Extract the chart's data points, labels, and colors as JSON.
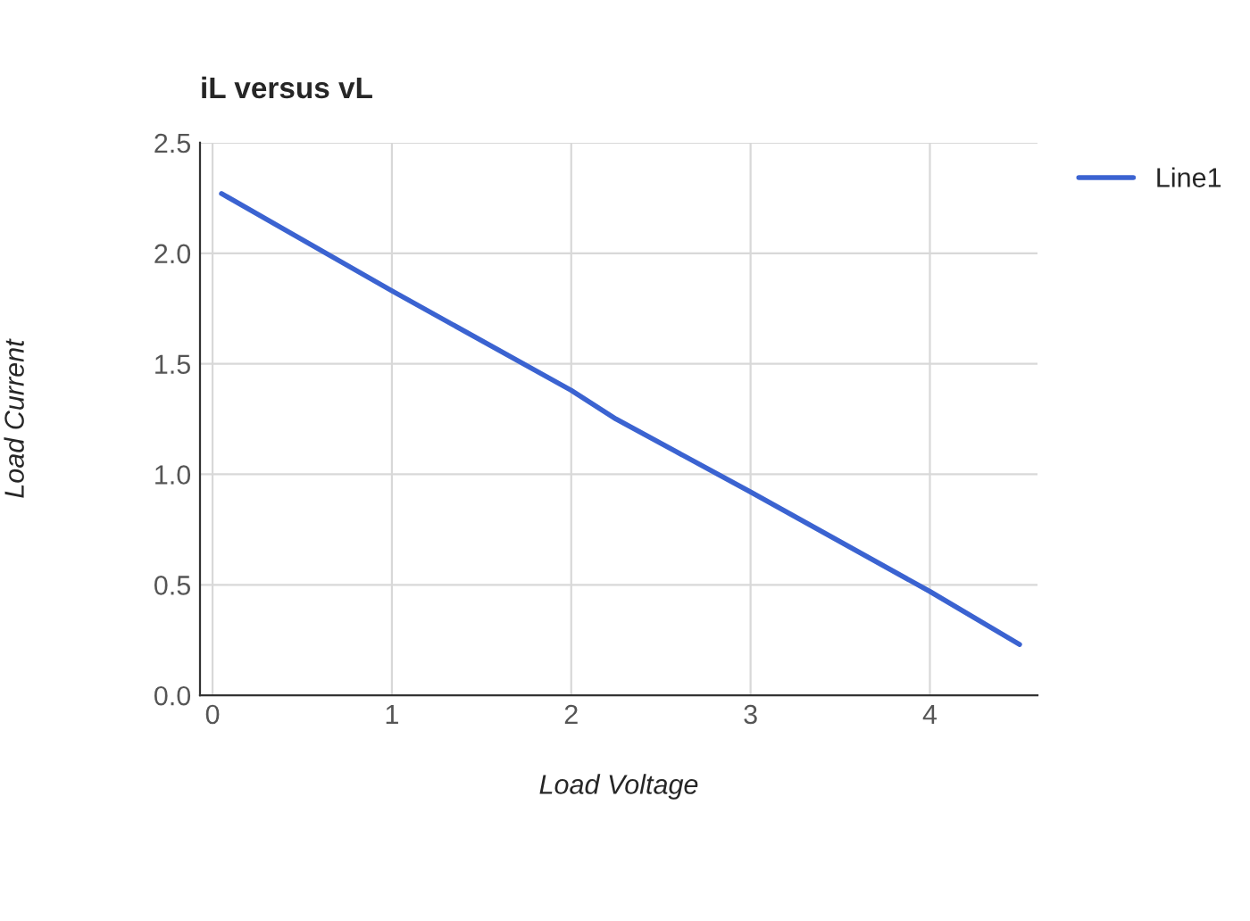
{
  "chart_data": {
    "type": "line",
    "title": "iL versus vL",
    "xlabel": "Load Voltage",
    "ylabel": "Load Current",
    "series": [
      {
        "name": "Line1",
        "color": "#3b63d1",
        "x": [
          0.05,
          1,
          2,
          2.25,
          3,
          4,
          4.5
        ],
        "values": [
          2.27,
          1.83,
          1.38,
          1.25,
          0.92,
          0.47,
          0.23
        ]
      }
    ],
    "xlim": [
      -0.07,
      4.6
    ],
    "xticks": [
      0,
      1,
      2,
      3,
      4
    ],
    "ylim": [
      0,
      2.5
    ],
    "yticks": [
      {
        "value": 0,
        "label": "0.0"
      },
      0.5,
      {
        "value": 1,
        "label": "1.0"
      },
      1.5,
      {
        "value": 2,
        "label": "2.0"
      },
      2.5
    ],
    "grid": true,
    "legend": "top right"
  }
}
